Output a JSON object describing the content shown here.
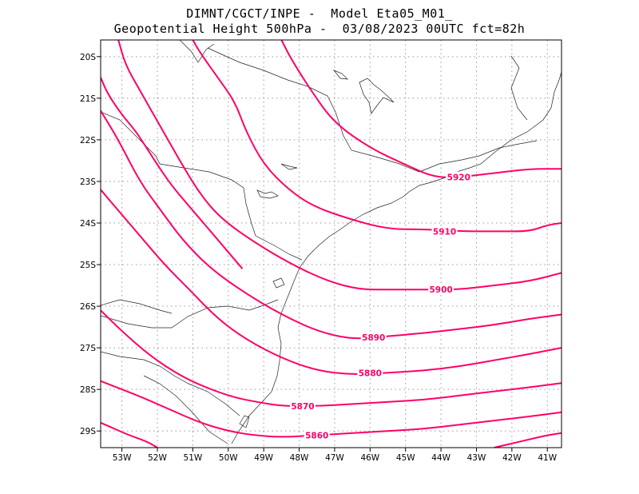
{
  "title": {
    "line1": "DIMNT/CGCT/INPE -  Model Eta05_M01_",
    "line2": "Geopotential Height 500hPa -  03/08/2023 00UTC fct=82h"
  },
  "map": {
    "lon_range": [
      -53.6,
      -40.6
    ],
    "lat_range": [
      -29.4,
      -19.6
    ],
    "lon_ticks": [
      "53W",
      "52W",
      "51W",
      "50W",
      "49W",
      "48W",
      "47W",
      "46W",
      "45W",
      "44W",
      "43W",
      "42W",
      "41W"
    ],
    "lat_ticks": [
      "20S",
      "21S",
      "22S",
      "23S",
      "24S",
      "25S",
      "26S",
      "27S",
      "28S",
      "29S"
    ],
    "contour_color": "#ff0066",
    "contours": [
      {
        "label": "5920",
        "label_at": [
          -43.5,
          -22.9
        ],
        "points": [
          [
            -40.6,
            -22.7
          ],
          [
            -41.5,
            -22.7
          ],
          [
            -42.5,
            -22.8
          ],
          [
            -43.5,
            -22.9
          ],
          [
            -44.2,
            -22.9
          ],
          [
            -45,
            -22.6
          ],
          [
            -46,
            -22.2
          ],
          [
            -47,
            -21.6
          ],
          [
            -47.6,
            -20.9
          ],
          [
            -48.2,
            -20.1
          ],
          [
            -48.5,
            -19.6
          ]
        ]
      },
      {
        "label": "5910",
        "label_at": [
          -43.9,
          -24.2
        ],
        "points": [
          [
            -40.6,
            -24.0
          ],
          [
            -41,
            -24.05
          ],
          [
            -41.5,
            -24.2
          ],
          [
            -42.3,
            -24.2
          ],
          [
            -43.3,
            -24.2
          ],
          [
            -44.5,
            -24.15
          ],
          [
            -45.5,
            -24.15
          ],
          [
            -46.6,
            -23.9
          ],
          [
            -47.6,
            -23.6
          ],
          [
            -48.3,
            -23.2
          ],
          [
            -49,
            -22.6
          ],
          [
            -49.5,
            -21.8
          ],
          [
            -49.8,
            -21.1
          ],
          [
            -50.3,
            -20.5
          ],
          [
            -50.8,
            -19.9
          ],
          [
            -51.0,
            -19.6
          ]
        ]
      },
      {
        "label": "5900",
        "label_at": [
          -44.0,
          -25.6
        ],
        "points": [
          [
            -40.6,
            -25.2
          ],
          [
            -41.5,
            -25.4
          ],
          [
            -42.5,
            -25.5
          ],
          [
            -43.5,
            -25.6
          ],
          [
            -44.5,
            -25.6
          ],
          [
            -45.5,
            -25.6
          ],
          [
            -46.3,
            -25.6
          ],
          [
            -47.2,
            -25.4
          ],
          [
            -48.2,
            -25.0
          ],
          [
            -49.2,
            -24.5
          ],
          [
            -50.2,
            -23.9
          ],
          [
            -50.8,
            -23.3
          ],
          [
            -51.3,
            -22.6
          ],
          [
            -51.9,
            -21.7
          ],
          [
            -52.5,
            -20.8
          ],
          [
            -52.9,
            -20.2
          ],
          [
            -53.1,
            -19.6
          ]
        ]
      },
      {
        "label": "5890",
        "label_at": [
          -45.9,
          -26.75
        ],
        "points": [
          [
            -40.6,
            -26.2
          ],
          [
            -41.5,
            -26.3
          ],
          [
            -42.5,
            -26.45
          ],
          [
            -43.5,
            -26.55
          ],
          [
            -44.5,
            -26.65
          ],
          [
            -45.5,
            -26.72
          ],
          [
            -46.5,
            -26.8
          ],
          [
            -47.5,
            -26.6
          ],
          [
            -48.5,
            -26.2
          ],
          [
            -49.5,
            -25.7
          ],
          [
            -50.5,
            -25.1
          ],
          [
            -51.3,
            -24.4
          ],
          [
            -51.9,
            -23.7
          ],
          [
            -52.5,
            -23.0
          ],
          [
            -53.1,
            -22.0
          ],
          [
            -53.6,
            -21.3
          ]
        ]
      },
      {
        "label": "5880",
        "label_at": [
          -46.0,
          -27.6
        ],
        "points": [
          [
            -40.6,
            -27.0
          ],
          [
            -41.5,
            -27.15
          ],
          [
            -42.5,
            -27.3
          ],
          [
            -43.5,
            -27.45
          ],
          [
            -44.5,
            -27.55
          ],
          [
            -45.5,
            -27.6
          ],
          [
            -46.5,
            -27.65
          ],
          [
            -47.5,
            -27.55
          ],
          [
            -48.5,
            -27.25
          ],
          [
            -49.5,
            -26.8
          ],
          [
            -50.3,
            -26.3
          ],
          [
            -51.1,
            -25.6
          ],
          [
            -51.8,
            -25.0
          ],
          [
            -52.5,
            -24.3
          ],
          [
            -53.2,
            -23.6
          ],
          [
            -53.6,
            -23.2
          ]
        ]
      },
      {
        "label": "5870",
        "label_at": [
          -47.9,
          -28.4
        ],
        "points": [
          [
            -40.6,
            -27.85
          ],
          [
            -41.5,
            -27.95
          ],
          [
            -42.5,
            -28.05
          ],
          [
            -43.5,
            -28.15
          ],
          [
            -44.5,
            -28.25
          ],
          [
            -45.5,
            -28.3
          ],
          [
            -46.5,
            -28.35
          ],
          [
            -47.5,
            -28.4
          ],
          [
            -48.5,
            -28.4
          ],
          [
            -49.2,
            -28.3
          ],
          [
            -49.8,
            -28.2
          ],
          [
            -50.5,
            -28.0
          ],
          [
            -51.3,
            -27.7
          ],
          [
            -52.2,
            -27.2
          ],
          [
            -53.0,
            -26.6
          ],
          [
            -53.6,
            -26.1
          ]
        ]
      },
      {
        "label": "5860",
        "label_at": [
          -47.5,
          -29.1
        ],
        "points": [
          [
            -40.6,
            -28.55
          ],
          [
            -41.5,
            -28.65
          ],
          [
            -42.5,
            -28.75
          ],
          [
            -43.5,
            -28.85
          ],
          [
            -44.5,
            -28.95
          ],
          [
            -45.5,
            -29.0
          ],
          [
            -46.5,
            -29.05
          ],
          [
            -47.5,
            -29.1
          ],
          [
            -48.5,
            -29.15
          ],
          [
            -49.3,
            -29.1
          ],
          [
            -50.0,
            -29.0
          ],
          [
            -50.8,
            -28.8
          ],
          [
            -51.6,
            -28.5
          ],
          [
            -52.4,
            -28.2
          ],
          [
            -53.0,
            -28.0
          ],
          [
            -53.6,
            -27.8
          ]
        ]
      },
      {
        "label": "",
        "label_at": null,
        "points": [
          [
            -53.6,
            -28.8
          ],
          [
            -53.2,
            -28.95
          ],
          [
            -52.8,
            -29.1
          ],
          [
            -52.3,
            -29.25
          ],
          [
            -52.0,
            -29.4
          ]
        ]
      },
      {
        "label": "",
        "label_at": null,
        "points": [
          [
            -42.5,
            -29.4
          ],
          [
            -42.0,
            -29.3
          ],
          [
            -41.5,
            -29.2
          ],
          [
            -41.0,
            -29.1
          ],
          [
            -40.6,
            -29.05
          ]
        ]
      },
      {
        "label": "",
        "label_at": null,
        "points": [
          [
            -53.6,
            -20.5
          ],
          [
            -53.4,
            -20.9
          ],
          [
            -53.0,
            -21.4
          ],
          [
            -52.6,
            -21.8
          ],
          [
            -52.3,
            -22.2
          ],
          [
            -52.0,
            -22.6
          ],
          [
            -51.6,
            -23.1
          ],
          [
            -51.1,
            -23.6
          ],
          [
            -50.6,
            -24.1
          ],
          [
            -50.1,
            -24.6
          ],
          [
            -49.6,
            -25.1
          ]
        ]
      }
    ]
  }
}
